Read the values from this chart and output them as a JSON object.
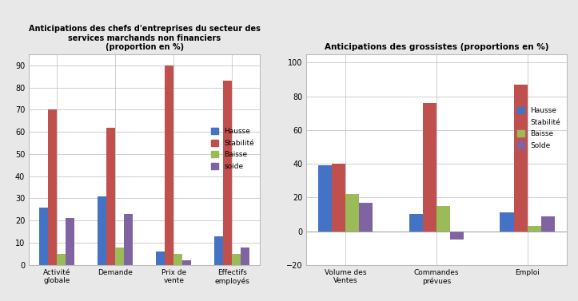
{
  "chart1": {
    "title": "Anticipations des chefs d'entreprises du secteur des\nservices marchands non financiers\n(proportion en %)",
    "categories": [
      "Activité\nglobale",
      "Demande",
      "Prix de\nvente",
      "Effectifs\nemployés"
    ],
    "series": {
      "Hausse": [
        26,
        31,
        6,
        13
      ],
      "Stabilité": [
        70,
        62,
        90,
        83
      ],
      "Baisse": [
        5,
        8,
        5,
        5
      ],
      "soide": [
        21,
        23,
        2,
        8
      ]
    },
    "colors": {
      "Hausse": "#4472C4",
      "Stabilité": "#C0504D",
      "Baisse": "#9BBB59",
      "soide": "#8064A2"
    },
    "ylim": [
      0,
      95
    ],
    "yticks": [
      0,
      10,
      20,
      30,
      40,
      50,
      60,
      70,
      80,
      90
    ]
  },
  "chart2": {
    "title": "Anticipations des grossistes (proportions en %)",
    "categories": [
      "Volume des\nVentes",
      "Commandes\nprévues",
      "Emploi"
    ],
    "series": {
      "Hausse": [
        39,
        10,
        11
      ],
      "Stabilité": [
        40,
        76,
        87
      ],
      "Baisse": [
        22,
        15,
        3
      ],
      "Solde": [
        17,
        -5,
        9
      ]
    },
    "colors": {
      "Hausse": "#4472C4",
      "Stabilité": "#C0504D",
      "Baisse": "#9BBB59",
      "Solde": "#8064A2"
    },
    "ylim": [
      -20,
      105
    ],
    "yticks": [
      -20,
      0,
      20,
      40,
      60,
      80,
      100
    ]
  },
  "background_color": "#E8E8E8",
  "plot_bg_color": "#FFFFFF",
  "bar_width": 0.15,
  "grid_color": "#BBBBBB"
}
